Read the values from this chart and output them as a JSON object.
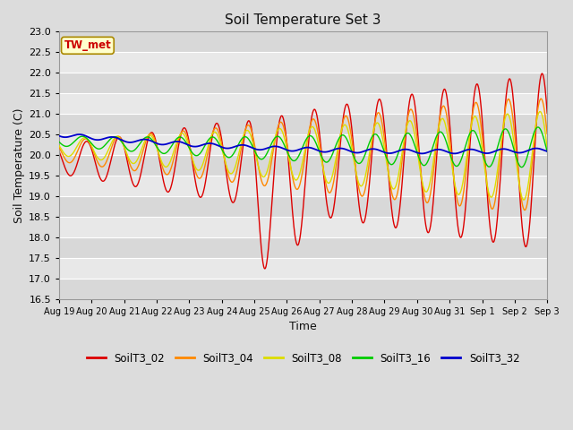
{
  "title": "Soil Temperature Set 3",
  "xlabel": "Time",
  "ylabel": "Soil Temperature (C)",
  "ylim": [
    16.5,
    23.0
  ],
  "yticks": [
    16.5,
    17.0,
    17.5,
    18.0,
    18.5,
    19.0,
    19.5,
    20.0,
    20.5,
    21.0,
    21.5,
    22.0,
    22.5,
    23.0
  ],
  "bg_color": "#dcdcdc",
  "plot_bg_dark": "#d0d0d0",
  "plot_bg_light": "#e0e0e0",
  "grid_color": "#ffffff",
  "series": {
    "SoilT3_02": {
      "color": "#dd0000",
      "lw": 1.0
    },
    "SoilT3_04": {
      "color": "#ff8800",
      "lw": 1.0
    },
    "SoilT3_08": {
      "color": "#dddd00",
      "lw": 1.0
    },
    "SoilT3_16": {
      "color": "#00cc00",
      "lw": 1.0
    },
    "SoilT3_32": {
      "color": "#0000cc",
      "lw": 1.3
    }
  },
  "annotation_text": "TW_met",
  "annotation_color": "#cc0000",
  "annotation_bg": "#ffffcc",
  "annotation_border": "#aa8800",
  "n_days": 15
}
